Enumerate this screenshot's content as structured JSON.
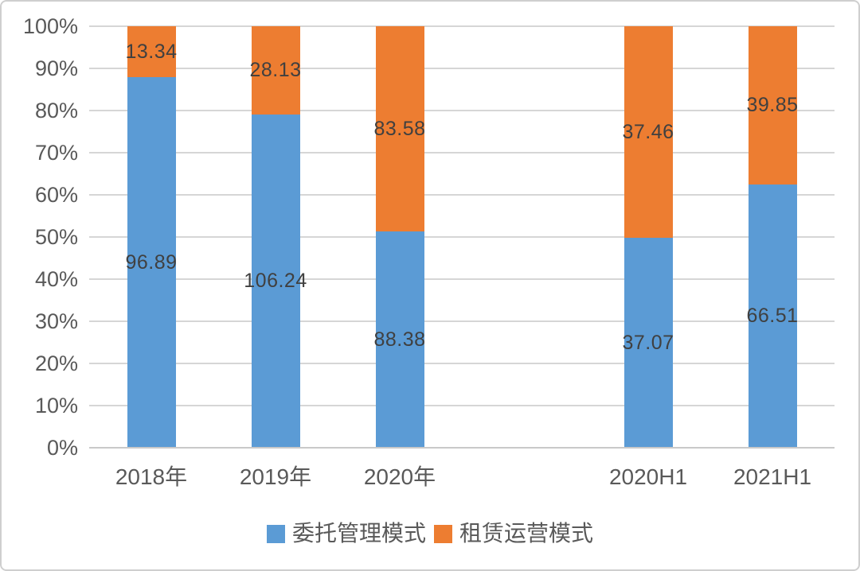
{
  "chart_data": {
    "type": "bar",
    "variant": "percent-stacked-column",
    "title": "",
    "xlabel": "",
    "ylabel": "",
    "categories": [
      "2018年",
      "2019年",
      "2020年",
      "2020H1",
      "2021H1"
    ],
    "series": [
      {
        "name": "委托管理模式",
        "color": "#5B9BD5",
        "values": [
          96.89,
          106.24,
          88.38,
          37.07,
          66.51
        ]
      },
      {
        "name": "租赁运营模式",
        "color": "#ED7D31",
        "values": [
          13.34,
          28.13,
          83.58,
          37.46,
          39.85
        ]
      }
    ],
    "data_labels_visible": true,
    "y_ticks": [
      "0%",
      "10%",
      "20%",
      "30%",
      "40%",
      "50%",
      "60%",
      "70%",
      "80%",
      "90%",
      "100%"
    ],
    "ylim": [
      0,
      100
    ],
    "grid": true,
    "legend_position": "bottom",
    "layout": {
      "slot_count": 6,
      "category_slots": [
        0,
        1,
        2,
        4,
        5
      ]
    }
  },
  "colors": {
    "grid": "#D6D6D6",
    "axis_text": "#595959",
    "data_label_text": "#404040",
    "frame_border": "#CFCFCF",
    "background": "#FFFFFF"
  }
}
